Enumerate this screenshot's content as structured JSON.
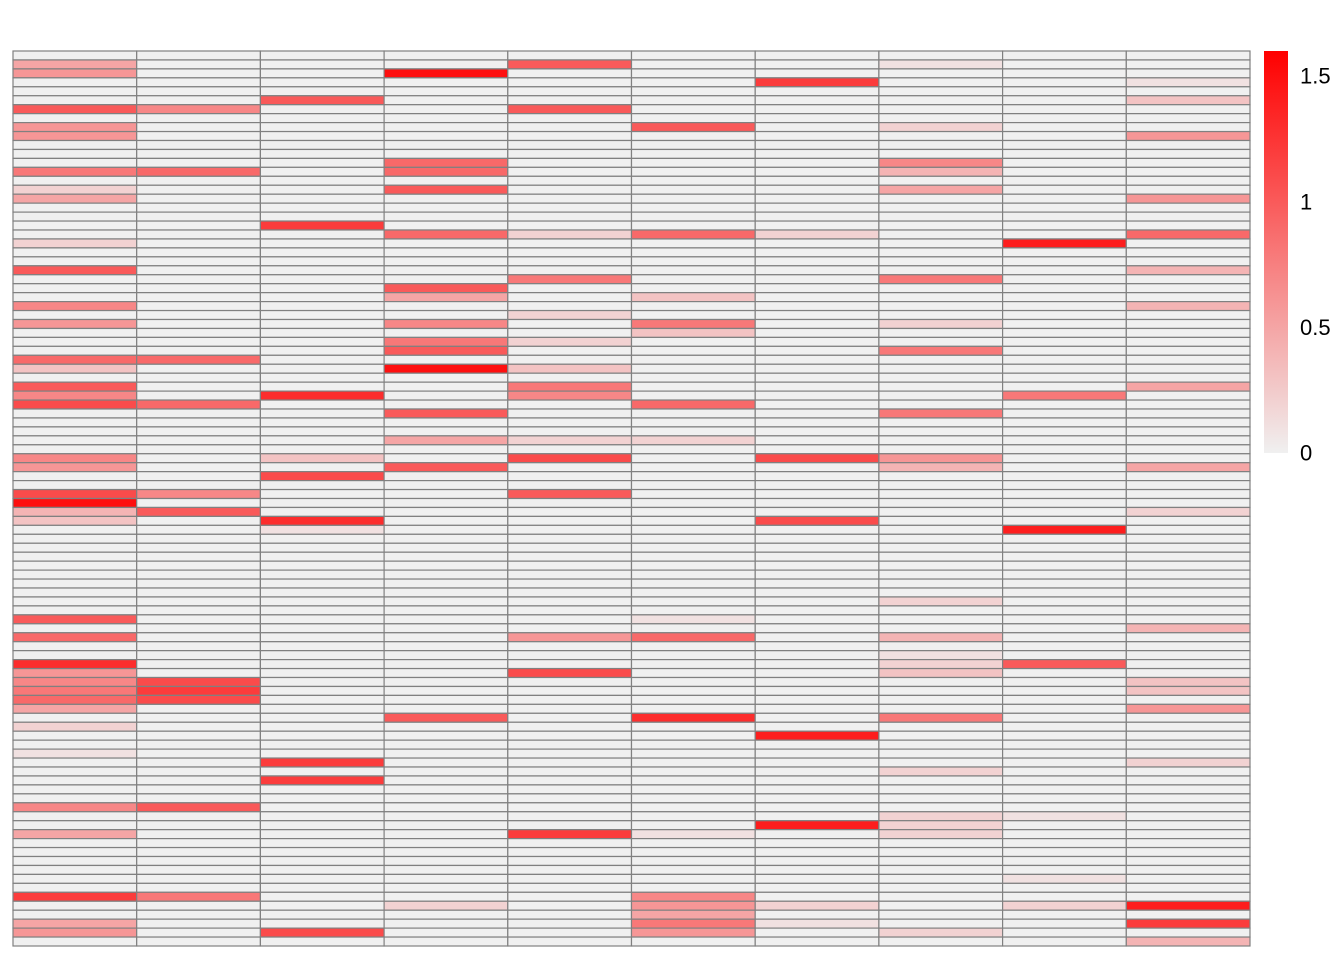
{
  "chart_data": {
    "type": "heatmap",
    "n_rows": 100,
    "n_cols": 10,
    "row_labels": [],
    "col_labels": [],
    "title": "",
    "grid": true,
    "cell_border_color": "#808080",
    "color_scale": {
      "min": 0,
      "max": 1.6,
      "low_color": "#f0f0f0",
      "high_color": "#ff0000",
      "ticks": [
        {
          "value": 0,
          "label": "0"
        },
        {
          "value": 0.5,
          "label": "0.5"
        },
        {
          "value": 1,
          "label": "1"
        },
        {
          "value": 1.5,
          "label": "1.5"
        }
      ],
      "legend_position": "right"
    },
    "nonzero_cells": [
      [
        1,
        0,
        0.5
      ],
      [
        2,
        0,
        0.6
      ],
      [
        6,
        0,
        1.0
      ],
      [
        8,
        0,
        0.6
      ],
      [
        9,
        0,
        0.6
      ],
      [
        13,
        0,
        0.8
      ],
      [
        15,
        0,
        0.2
      ],
      [
        16,
        0,
        0.5
      ],
      [
        21,
        0,
        0.2
      ],
      [
        24,
        0,
        1.0
      ],
      [
        28,
        0,
        0.7
      ],
      [
        30,
        0,
        0.6
      ],
      [
        34,
        0,
        0.9
      ],
      [
        35,
        0,
        0.3
      ],
      [
        37,
        0,
        1.0
      ],
      [
        38,
        0,
        0.7
      ],
      [
        39,
        0,
        1.1
      ],
      [
        45,
        0,
        0.7
      ],
      [
        46,
        0,
        0.6
      ],
      [
        49,
        0,
        1.1
      ],
      [
        50,
        0,
        1.5
      ],
      [
        51,
        0,
        0.4
      ],
      [
        52,
        0,
        0.3
      ],
      [
        63,
        0,
        1.0
      ],
      [
        65,
        0,
        0.9
      ],
      [
        68,
        0,
        1.3
      ],
      [
        69,
        0,
        0.6
      ],
      [
        70,
        0,
        0.7
      ],
      [
        71,
        0,
        0.8
      ],
      [
        72,
        0,
        0.9
      ],
      [
        73,
        0,
        0.5
      ],
      [
        75,
        0,
        0.2
      ],
      [
        78,
        0,
        0.1
      ],
      [
        84,
        0,
        0.7
      ],
      [
        87,
        0,
        0.5
      ],
      [
        94,
        0,
        1.2
      ],
      [
        97,
        0,
        0.5
      ],
      [
        98,
        0,
        0.6
      ],
      [
        6,
        1,
        0.7
      ],
      [
        13,
        1,
        0.9
      ],
      [
        34,
        1,
        0.9
      ],
      [
        39,
        1,
        0.9
      ],
      [
        49,
        1,
        0.7
      ],
      [
        51,
        1,
        1.0
      ],
      [
        70,
        1,
        1.1
      ],
      [
        71,
        1,
        1.2
      ],
      [
        72,
        1,
        1.1
      ],
      [
        84,
        1,
        1.0
      ],
      [
        94,
        1,
        0.8
      ],
      [
        5,
        2,
        1.0
      ],
      [
        19,
        2,
        1.2
      ],
      [
        38,
        2,
        1.3
      ],
      [
        45,
        2,
        0.3
      ],
      [
        47,
        2,
        1.1
      ],
      [
        52,
        2,
        1.3
      ],
      [
        53,
        2,
        0.1
      ],
      [
        79,
        2,
        1.2
      ],
      [
        81,
        2,
        1.2
      ],
      [
        98,
        2,
        1.1
      ],
      [
        2,
        3,
        1.5
      ],
      [
        12,
        3,
        0.9
      ],
      [
        13,
        3,
        0.9
      ],
      [
        15,
        3,
        1.0
      ],
      [
        20,
        3,
        0.9
      ],
      [
        26,
        3,
        1.0
      ],
      [
        27,
        3,
        0.5
      ],
      [
        30,
        3,
        0.7
      ],
      [
        32,
        3,
        0.8
      ],
      [
        33,
        3,
        1.0
      ],
      [
        35,
        3,
        1.5
      ],
      [
        40,
        3,
        1.0
      ],
      [
        43,
        3,
        0.5
      ],
      [
        46,
        3,
        1.0
      ],
      [
        74,
        3,
        1.0
      ],
      [
        95,
        3,
        0.2
      ],
      [
        1,
        4,
        1.0
      ],
      [
        6,
        4,
        1.0
      ],
      [
        20,
        4,
        0.2
      ],
      [
        25,
        4,
        0.8
      ],
      [
        29,
        4,
        0.2
      ],
      [
        32,
        4,
        0.2
      ],
      [
        35,
        4,
        0.3
      ],
      [
        37,
        4,
        0.8
      ],
      [
        38,
        4,
        0.7
      ],
      [
        43,
        4,
        0.2
      ],
      [
        45,
        4,
        1.1
      ],
      [
        49,
        4,
        1.0
      ],
      [
        65,
        4,
        0.6
      ],
      [
        69,
        4,
        1.1
      ],
      [
        87,
        4,
        1.2
      ],
      [
        8,
        5,
        1.0
      ],
      [
        20,
        5,
        0.9
      ],
      [
        27,
        5,
        0.3
      ],
      [
        30,
        5,
        0.8
      ],
      [
        31,
        5,
        0.3
      ],
      [
        39,
        5,
        0.9
      ],
      [
        43,
        5,
        0.2
      ],
      [
        63,
        5,
        0.1
      ],
      [
        65,
        5,
        0.9
      ],
      [
        74,
        5,
        1.3
      ],
      [
        87,
        5,
        0.1
      ],
      [
        94,
        5,
        0.7
      ],
      [
        95,
        5,
        0.6
      ],
      [
        96,
        5,
        0.5
      ],
      [
        97,
        5,
        0.8
      ],
      [
        98,
        5,
        0.6
      ],
      [
        3,
        6,
        1.2
      ],
      [
        20,
        6,
        0.2
      ],
      [
        45,
        6,
        1.1
      ],
      [
        52,
        6,
        1.1
      ],
      [
        76,
        6,
        1.4
      ],
      [
        86,
        6,
        1.4
      ],
      [
        95,
        6,
        0.2
      ],
      [
        97,
        6,
        0.1
      ],
      [
        1,
        7,
        0.1
      ],
      [
        8,
        7,
        0.2
      ],
      [
        12,
        7,
        0.7
      ],
      [
        13,
        7,
        0.4
      ],
      [
        15,
        7,
        0.5
      ],
      [
        25,
        7,
        0.8
      ],
      [
        30,
        7,
        0.2
      ],
      [
        33,
        7,
        0.8
      ],
      [
        40,
        7,
        0.8
      ],
      [
        45,
        7,
        0.6
      ],
      [
        46,
        7,
        0.4
      ],
      [
        61,
        7,
        0.2
      ],
      [
        65,
        7,
        0.4
      ],
      [
        67,
        7,
        0.1
      ],
      [
        68,
        7,
        0.2
      ],
      [
        69,
        7,
        0.3
      ],
      [
        74,
        7,
        0.8
      ],
      [
        80,
        7,
        0.2
      ],
      [
        85,
        7,
        0.2
      ],
      [
        86,
        7,
        0.2
      ],
      [
        87,
        7,
        0.2
      ],
      [
        98,
        7,
        0.2
      ],
      [
        21,
        8,
        1.4
      ],
      [
        38,
        8,
        0.8
      ],
      [
        53,
        8,
        1.4
      ],
      [
        68,
        8,
        1.0
      ],
      [
        85,
        8,
        0.1
      ],
      [
        92,
        8,
        0.1
      ],
      [
        95,
        8,
        0.2
      ],
      [
        3,
        9,
        0.1
      ],
      [
        5,
        9,
        0.3
      ],
      [
        9,
        9,
        0.6
      ],
      [
        16,
        9,
        0.6
      ],
      [
        20,
        9,
        0.9
      ],
      [
        24,
        9,
        0.4
      ],
      [
        28,
        9,
        0.4
      ],
      [
        37,
        9,
        0.5
      ],
      [
        46,
        9,
        0.5
      ],
      [
        51,
        9,
        0.2
      ],
      [
        64,
        9,
        0.4
      ],
      [
        70,
        9,
        0.3
      ],
      [
        71,
        9,
        0.3
      ],
      [
        73,
        9,
        0.6
      ],
      [
        79,
        9,
        0.2
      ],
      [
        95,
        9,
        1.4
      ],
      [
        97,
        9,
        1.2
      ],
      [
        99,
        9,
        0.4
      ]
    ]
  }
}
